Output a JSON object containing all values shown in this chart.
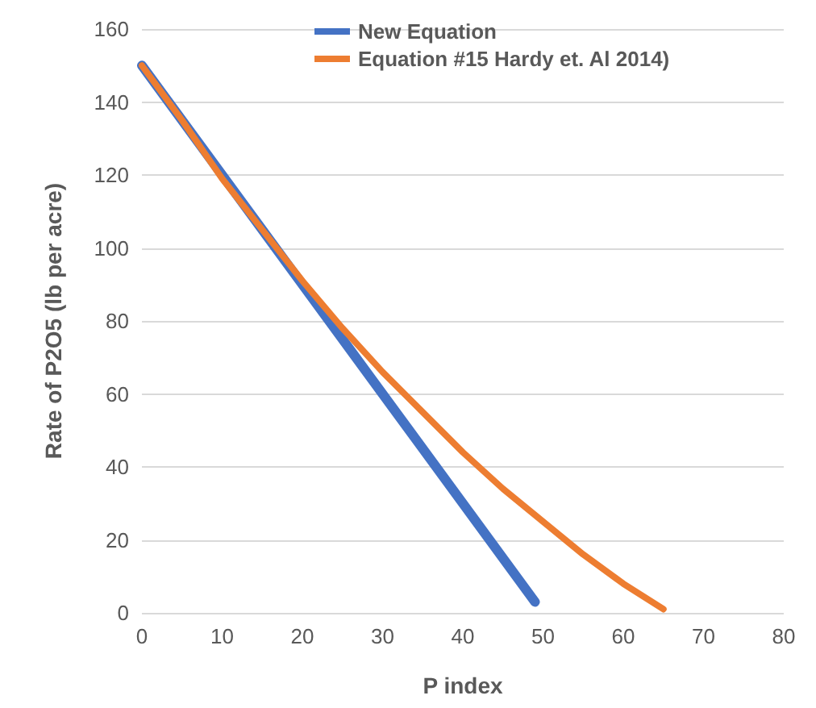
{
  "chart_data": {
    "type": "line",
    "xlabel": "P index",
    "ylabel": "Rate of P2O5 (lb per acre)",
    "series": [
      {
        "name": "New Equation",
        "color": "#4472c4",
        "x": [
          0,
          49
        ],
        "values": [
          150,
          3
        ]
      },
      {
        "name": "Equation #15 Hardy et. Al 2014)",
        "color": "#ed7d31",
        "x": [
          0,
          5,
          10,
          15,
          20,
          25,
          30,
          35,
          40,
          45,
          50,
          55,
          60,
          65
        ],
        "values": [
          150,
          135,
          119,
          105,
          91,
          78,
          66,
          55,
          44,
          34,
          25,
          16,
          8,
          1
        ]
      }
    ],
    "xlim": [
      0,
      80
    ],
    "xticks": [
      0,
      10,
      20,
      30,
      40,
      50,
      60,
      70,
      80
    ],
    "ylim": [
      0,
      160
    ],
    "yticks": [
      0,
      20,
      40,
      60,
      80,
      100,
      120,
      140,
      160
    ],
    "grid": "y",
    "legend": "top",
    "marker": "none",
    "line_style": "solid"
  }
}
